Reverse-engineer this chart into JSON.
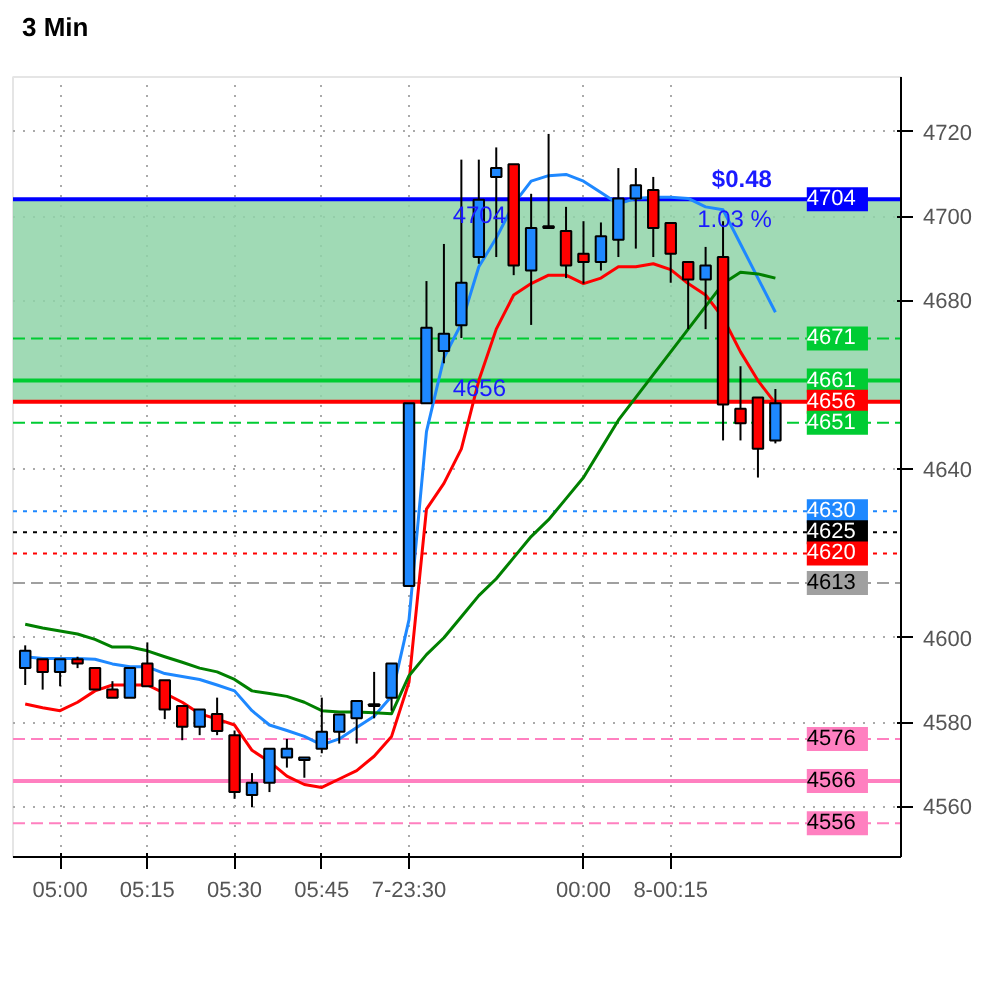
{
  "chart_data": {
    "type": "candlestick",
    "title": "3 Min",
    "categories": [
      null,
      null,
      "05:00",
      null,
      null,
      null,
      null,
      "05:15",
      null,
      null,
      null,
      null,
      "05:30",
      null,
      null,
      null,
      null,
      "05:45",
      null,
      null,
      null,
      null,
      "7-23:30",
      null,
      null,
      null,
      null,
      null,
      null,
      null,
      null,
      null,
      "00:00",
      null,
      null,
      null,
      null,
      "8-00:15",
      null,
      null,
      null,
      null,
      null,
      null
    ],
    "ohlc": [
      [
        4592.8,
        4598.2,
        4588.8,
        4596.9
      ],
      [
        4594.9,
        4594.9,
        4587.7,
        4591.9
      ],
      [
        4591.9,
        4594.9,
        4588.5,
        4594.9
      ],
      [
        4594.9,
        4595.5,
        4592.8,
        4593.9
      ],
      [
        4592.8,
        4592.8,
        4587.7,
        4587.7
      ],
      [
        4587.7,
        4589.7,
        4585.8,
        4585.8
      ],
      [
        4585.8,
        4592.8,
        4585.8,
        4592.8
      ],
      [
        4593.9,
        4598.9,
        4588.5,
        4588.5
      ],
      [
        4589.9,
        4589.9,
        4580.7,
        4583.0
      ],
      [
        4583.8,
        4583.8,
        4575.7,
        4578.9
      ],
      [
        4578.9,
        4583.0,
        4576.9,
        4583.0
      ],
      [
        4581.9,
        4585.8,
        4576.9,
        4577.9
      ],
      [
        4576.9,
        4578.0,
        4561.8,
        4563.4
      ],
      [
        4562.7,
        4567.9,
        4559.8,
        4565.6
      ],
      [
        4565.6,
        4573.7,
        4563.4,
        4573.7
      ],
      [
        4571.6,
        4576.0,
        4569.2,
        4573.7
      ],
      [
        4571.0,
        4571.6,
        4566.8,
        4571.6
      ],
      [
        4573.7,
        4585.8,
        4572.6,
        4577.7
      ],
      [
        4577.7,
        4581.8,
        4574.9,
        4581.8
      ],
      [
        4580.9,
        4585.0,
        4574.9,
        4585.0
      ],
      [
        4583.8,
        4591.9,
        4580.9,
        4583.8
      ],
      [
        4585.8,
        4593.9,
        4582.7,
        4593.9
      ],
      [
        4612.3,
        4655.6,
        4612.3,
        4655.6
      ],
      [
        4655.6,
        4684.6,
        4655.6,
        4673.5
      ],
      [
        4668.0,
        4693.4,
        4665.1,
        4672.1
      ],
      [
        4674.1,
        4713.4,
        4671.1,
        4684.2
      ],
      [
        4690.3,
        4713.4,
        4688.7,
        4703.9
      ],
      [
        4709.3,
        4716.3,
        4690.3,
        4711.4
      ],
      [
        4712.3,
        4712.3,
        4686.0,
        4688.3
      ],
      [
        4687.1,
        4705.3,
        4674.2,
        4697.2
      ],
      [
        4697.2,
        4719.5,
        4697.2,
        4697.2
      ],
      [
        4696.5,
        4702.2,
        4685.3,
        4688.3
      ],
      [
        4691.1,
        4698.8,
        4684.0,
        4689.1
      ],
      [
        4689.1,
        4698.5,
        4687.1,
        4695.2
      ],
      [
        4694.4,
        4711.4,
        4690.3,
        4704.2
      ],
      [
        4704.2,
        4711.4,
        4692.3,
        4707.3
      ],
      [
        4706.2,
        4709.3,
        4690.3,
        4697.2
      ],
      [
        4698.4,
        4698.4,
        4684.2,
        4691.1
      ],
      [
        4689.1,
        4689.1,
        4673.2,
        4685.0
      ],
      [
        4685.0,
        4692.7,
        4673.2,
        4688.3
      ],
      [
        4690.3,
        4698.8,
        4646.8,
        4655.3
      ],
      [
        4654.3,
        4664.4,
        4646.8,
        4650.9
      ],
      [
        4657.0,
        4657.0,
        4638.0,
        4644.8
      ],
      [
        4646.8,
        4659.0,
        4646.1,
        4655.6
      ]
    ],
    "colors": [
      "#1e88ff",
      "#ff0000",
      "#1e88ff",
      "#ff0000",
      "#ff0000",
      "#ff0000",
      "#1e88ff",
      "#ff0000",
      "#ff0000",
      "#ff0000",
      "#1e88ff",
      "#ff0000",
      "#ff0000",
      "#1e88ff",
      "#1e88ff",
      "#1e88ff",
      "#1e88ff",
      "#1e88ff",
      "#1e88ff",
      "#1e88ff",
      "#1e88ff",
      "#1e88ff",
      "#1e88ff",
      "#1e88ff",
      "#1e88ff",
      "#1e88ff",
      "#1e88ff",
      "#1e88ff",
      "#ff0000",
      "#1e88ff",
      "#1e88ff",
      "#ff0000",
      "#ff0000",
      "#1e88ff",
      "#1e88ff",
      "#1e88ff",
      "#ff0000",
      "#ff0000",
      "#ff0000",
      "#1e88ff",
      "#ff0000",
      "#ff0000",
      "#ff0000",
      "#1e88ff"
    ],
    "series": [
      {
        "type": "line",
        "color": "#1e88ff",
        "values": [
          4595.5,
          4595.1,
          4595.1,
          4595.1,
          4594.9,
          4593.8,
          4593.1,
          4593.1,
          4591.5,
          4590.8,
          4590.1,
          4588.8,
          4587.4,
          4582.7,
          4579.3,
          4578.0,
          4576.6,
          4574.6,
          4576.0,
          4578.7,
          4581.4,
          4586.1,
          4604.3,
          4648.9,
          4666.4,
          4674.5,
          4688.0,
          4694.8,
          4702.9,
          4708.3,
          4709.6,
          4709.9,
          4708.3,
          4705.6,
          4702.9,
          4704.2,
          4704.5,
          4704.5,
          4704.2,
          4702.2,
          4701.5,
          4693.4,
          4685.3,
          4677.2
        ]
      },
      {
        "type": "line",
        "color": "#ff0000",
        "values": [
          4584.3,
          4583.4,
          4582.7,
          4584.7,
          4587.4,
          4588.8,
          4588.8,
          4588.8,
          4586.8,
          4584.7,
          4582.0,
          4580.7,
          4579.3,
          4573.3,
          4570.6,
          4567.2,
          4565.2,
          4564.5,
          4566.5,
          4568.5,
          4571.9,
          4576.6,
          4589.5,
          4630.5,
          4636.6,
          4644.8,
          4661.0,
          4673.2,
          4681.3,
          4684.0,
          4686.0,
          4686.0,
          4684.0,
          4685.3,
          4688.0,
          4688.0,
          4688.7,
          4687.3,
          4684.0,
          4681.3,
          4675.9,
          4667.8,
          4661.0,
          4655.6
        ]
      },
      {
        "type": "line",
        "color": "#008000",
        "values": [
          4603.2,
          4602.3,
          4601.6,
          4600.9,
          4599.6,
          4597.8,
          4597.8,
          4596.9,
          4595.5,
          4594.2,
          4592.8,
          4591.9,
          4590.1,
          4587.4,
          4586.8,
          4586.1,
          4584.7,
          4582.7,
          4582.4,
          4582.4,
          4582.2,
          4582.0,
          4591.0,
          4596.0,
          4600.0,
          4605.0,
          4610.0,
          4614.0,
          4619.0,
          4624.0,
          4628.0,
          4633.0,
          4638.0,
          4644.8,
          4651.6,
          4657.0,
          4662.4,
          4667.8,
          4673.2,
          4678.6,
          4684.0,
          4686.7,
          4686.3,
          4685.3
        ]
      }
    ],
    "ylim": [
      4548,
      4733
    ],
    "yticks": [
      4560,
      4580,
      4600,
      4640,
      4680,
      4700,
      4720
    ],
    "grid": true,
    "bands": [
      {
        "axis": "y",
        "from": 4656,
        "to": 4704,
        "color": "#8fd4a8"
      }
    ],
    "ref_lines": [
      {
        "axis": "y",
        "value": 4704,
        "label": "4704",
        "color": "#0000ff",
        "line_style": "solid"
      },
      {
        "axis": "y",
        "value": 4671,
        "label": "4671",
        "color": "#00cc33",
        "line_style": "dashed"
      },
      {
        "axis": "y",
        "value": 4661,
        "label": "4661",
        "color": "#00cc33",
        "line_style": "solid"
      },
      {
        "axis": "y",
        "value": 4656,
        "label": "4656",
        "color": "#ff0000",
        "line_style": "solid"
      },
      {
        "axis": "y",
        "value": 4651,
        "label": "4651",
        "color": "#00cc33",
        "line_style": "dashed"
      },
      {
        "axis": "y",
        "value": 4630,
        "label": "4630",
        "color": "#1e88ff",
        "line_style": "dotted"
      },
      {
        "axis": "y",
        "value": 4625,
        "label": "4625",
        "color": "#000000",
        "line_style": "dotted"
      },
      {
        "axis": "y",
        "value": 4620,
        "label": "4620",
        "color": "#ff0000",
        "line_style": "dotted"
      },
      {
        "axis": "y",
        "value": 4613,
        "label": "4613",
        "color": "#a0a0a0",
        "line_style": "dashed"
      },
      {
        "axis": "y",
        "value": 4576,
        "label": "4576",
        "color": "#ff80c0",
        "line_style": "dashed"
      },
      {
        "axis": "y",
        "value": 4566,
        "label": "4566",
        "color": "#ff80c0",
        "line_style": "solid"
      },
      {
        "axis": "y",
        "value": 4556,
        "label": "4556",
        "color": "#ff80c0",
        "line_style": "dashed"
      }
    ],
    "annotations": [
      {
        "text": "$0.48",
        "y": 4704
      },
      {
        "text": "1.03 %",
        "y": 4704
      },
      {
        "text": "4704",
        "y": 4704
      },
      {
        "text": "4656",
        "y": 4656
      }
    ]
  }
}
